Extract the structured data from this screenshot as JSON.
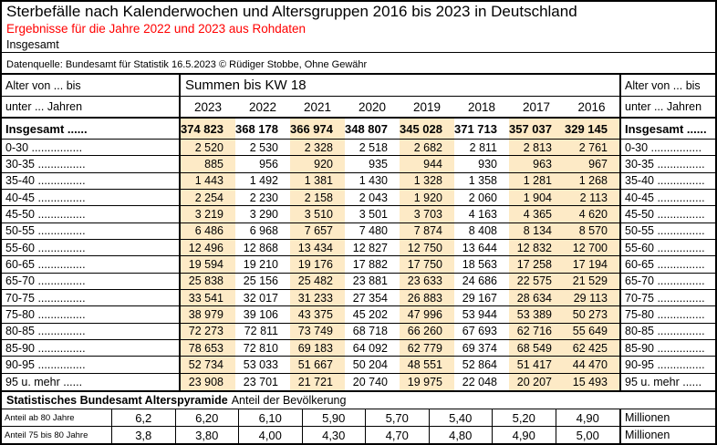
{
  "header": {
    "title": "Sterbefälle nach Kalenderwochen und Altersgruppen 2016 bis 2023 in Deutschland",
    "subtitle_red": "Ergebnisse für die Jahre 2022 und 2023 aus Rohdaten",
    "subtitle2": "Insgesamt",
    "source": "Datenquelle: Bundesamt für Statistik 16.5.2023 © Rüdiger Stobbe, Ohne Gewähr"
  },
  "colors": {
    "highlight": "#FDEAC6",
    "subtitle_red": "#FF0000"
  },
  "table": {
    "corner_line1": "Alter von ... bis",
    "corner_line2": "unter ... Jahren",
    "span_header": "Summen bis KW 18",
    "years": [
      "2023",
      "2022",
      "2021",
      "2020",
      "2019",
      "2018",
      "2017",
      "2016"
    ],
    "cream_column_indices": [
      0,
      2,
      4,
      6,
      7
    ],
    "total_row": {
      "label": "Insgesamt ......",
      "values": [
        "374 823",
        "368 178",
        "366 974",
        "348 807",
        "345 028",
        "371 713",
        "357 037",
        "329 145"
      ]
    },
    "rows": [
      {
        "label": "0-30 ................",
        "values": [
          "2 520",
          "2 530",
          "2 328",
          "2 518",
          "2 682",
          "2 811",
          "2 813",
          "2 761"
        ]
      },
      {
        "label": "30-35 ...............",
        "values": [
          "885",
          "956",
          "920",
          "935",
          "944",
          "930",
          "963",
          "967"
        ]
      },
      {
        "label": "35-40 ...............",
        "values": [
          "1 443",
          "1 492",
          "1 381",
          "1 430",
          "1 328",
          "1 358",
          "1 281",
          "1 268"
        ]
      },
      {
        "label": "40-45 ...............",
        "values": [
          "2 254",
          "2 230",
          "2 158",
          "2 043",
          "1 920",
          "2 060",
          "1 904",
          "2 113"
        ]
      },
      {
        "label": "45-50 ...............",
        "values": [
          "3 219",
          "3 290",
          "3 510",
          "3 501",
          "3 703",
          "4 163",
          "4 365",
          "4 620"
        ]
      },
      {
        "label": "50-55 ...............",
        "values": [
          "6 486",
          "6 968",
          "7 657",
          "7 480",
          "7 874",
          "8 408",
          "8 134",
          "8 570"
        ]
      },
      {
        "label": "55-60 ...............",
        "values": [
          "12 496",
          "12 868",
          "13 434",
          "12 827",
          "12 750",
          "13 644",
          "12 832",
          "12 700"
        ]
      },
      {
        "label": "60-65 ...............",
        "values": [
          "19 594",
          "19 210",
          "19 176",
          "17 882",
          "17 750",
          "18 563",
          "17 258",
          "17 194"
        ]
      },
      {
        "label": "65-70 ...............",
        "values": [
          "25 838",
          "25 156",
          "25 482",
          "23 881",
          "23 633",
          "24 686",
          "22 575",
          "21 529"
        ]
      },
      {
        "label": "70-75 ...............",
        "values": [
          "33 541",
          "32 017",
          "31 233",
          "27 354",
          "26 883",
          "29 167",
          "28 634",
          "29 113"
        ]
      },
      {
        "label": "75-80 ...............",
        "values": [
          "38 979",
          "39 106",
          "43 375",
          "45 202",
          "47 996",
          "53 944",
          "53 389",
          "50 273"
        ]
      },
      {
        "label": "80-85 ...............",
        "values": [
          "72 273",
          "72 811",
          "73 749",
          "68 718",
          "66 260",
          "67 693",
          "62 716",
          "55 649"
        ]
      },
      {
        "label": "85-90 ...............",
        "values": [
          "78 653",
          "72 810",
          "69 183",
          "64 092",
          "62 779",
          "69 374",
          "68 549",
          "62 425"
        ]
      },
      {
        "label": "90-95 ...............",
        "values": [
          "52 734",
          "53 033",
          "51 667",
          "50 204",
          "48 551",
          "52 864",
          "51 417",
          "44 470"
        ]
      },
      {
        "label": "95 u. mehr ......",
        "values": [
          "23 908",
          "23 701",
          "21 721",
          "20 740",
          "19 975",
          "22 048",
          "20 207",
          "15 493"
        ]
      }
    ]
  },
  "footer_table": {
    "header_bold": "Statistisches Bundesamt Alterspyramide",
    "header_regular": "Anteil der Bevölkerung",
    "rows": [
      {
        "label": "Anteil ab 80 Jahre",
        "values": [
          "6,2",
          "6,20",
          "6,10",
          "5,90",
          "5,70",
          "5,40",
          "5,20",
          "4,90"
        ],
        "unit": "Millionen"
      },
      {
        "label": "Anteil 75 bis 80 Jahre",
        "values": [
          "3,8",
          "3,80",
          "4,00",
          "4,30",
          "4,70",
          "4,80",
          "4,90",
          "5,00"
        ],
        "unit": "Millionen"
      }
    ]
  }
}
